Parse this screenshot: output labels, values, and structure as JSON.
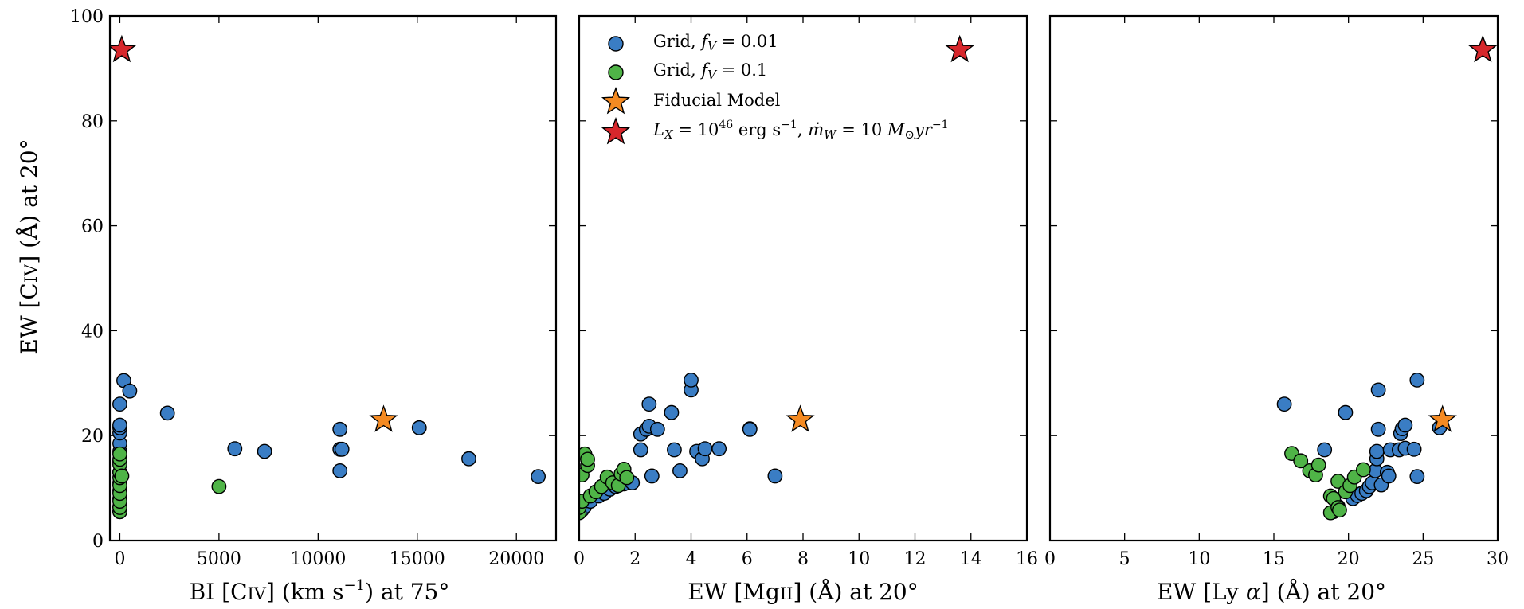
{
  "chart_data": {
    "type": "scatter",
    "shared_y_axis": {
      "label": "EW [CIV] (Å) at 20°",
      "ylim": [
        0,
        100
      ],
      "ticks": [
        0,
        20,
        40,
        60,
        80,
        100
      ]
    },
    "legend": {
      "placement": "top-left of middle panel",
      "entries": [
        {
          "key": "grid_fv_001",
          "label": "Grid, f_V = 0.01",
          "marker": "circle",
          "color": "#3a7dc4"
        },
        {
          "key": "grid_fv_01",
          "label": "Grid, f_V = 0.1",
          "marker": "circle",
          "color": "#4fb447"
        },
        {
          "key": "fiducial",
          "label": "Fiducial Model",
          "marker": "star",
          "color": "#f48a22"
        },
        {
          "key": "high_lx",
          "label": "L_X = 10^46 erg s^-1, ṁ_W = 10 M⊙yr^-1",
          "marker": "star",
          "color": "#d7272c"
        }
      ]
    },
    "panels": [
      {
        "id": "panel-bi",
        "xlabel": "BI [CIV] (km s^-1) at 75°",
        "xlim": [
          -500,
          22000
        ],
        "xticks": [
          0,
          5000,
          10000,
          15000,
          20000
        ],
        "xtick_labels": [
          "0",
          "5000",
          "10000",
          "15000",
          "20000"
        ],
        "series": [
          {
            "key": "grid_fv_001",
            "points": [
              [
                0,
                5.5
              ],
              [
                0,
                6.5
              ],
              [
                0,
                8
              ],
              [
                0,
                9.5
              ],
              [
                0,
                11
              ],
              [
                0,
                13
              ],
              [
                0,
                15
              ],
              [
                0,
                17
              ],
              [
                0,
                18.5
              ],
              [
                0,
                20.5
              ],
              [
                0,
                21.5
              ],
              [
                0,
                22
              ],
              [
                0,
                26
              ],
              [
                200,
                30.5
              ],
              [
                500,
                28.5
              ],
              [
                2400,
                24.3
              ],
              [
                5800,
                17.5
              ],
              [
                7300,
                17
              ],
              [
                11100,
                21.2
              ],
              [
                11100,
                17.4
              ],
              [
                11200,
                17.4
              ],
              [
                11100,
                13.3
              ],
              [
                15100,
                21.5
              ],
              [
                17600,
                15.6
              ],
              [
                21100,
                12.2
              ]
            ]
          },
          {
            "key": "grid_fv_01",
            "points": [
              [
                0,
                5.5
              ],
              [
                0,
                6.3
              ],
              [
                0,
                7.5
              ],
              [
                0,
                9
              ],
              [
                0,
                10.5
              ],
              [
                0,
                12
              ],
              [
                0,
                13
              ],
              [
                0,
                14.5
              ],
              [
                0,
                15.5
              ],
              [
                0,
                16.5
              ],
              [
                100,
                12.3
              ],
              [
                5000,
                10.3
              ]
            ]
          },
          {
            "key": "fiducial",
            "points": [
              [
                13300,
                23
              ]
            ]
          },
          {
            "key": "high_lx",
            "points": [
              [
                100,
                93.5
              ]
            ]
          }
        ]
      },
      {
        "id": "panel-mgii",
        "xlabel": "EW [MgII] (Å) at 20°",
        "xlim": [
          0,
          16
        ],
        "xticks": [
          0,
          2,
          4,
          6,
          8,
          10,
          12,
          14,
          16
        ],
        "xtick_labels": [
          "0",
          "2",
          "4",
          "6",
          "8",
          "10",
          "12",
          "14",
          "16"
        ],
        "series": [
          {
            "key": "grid_fv_001",
            "points": [
              [
                0.1,
                5.8
              ],
              [
                0.2,
                6.5
              ],
              [
                0.4,
                7.5
              ],
              [
                0.7,
                8.5
              ],
              [
                0.9,
                9
              ],
              [
                1.1,
                9.8
              ],
              [
                1.3,
                10.3
              ],
              [
                1.6,
                10.8
              ],
              [
                1.9,
                11
              ],
              [
                2.2,
                17.3
              ],
              [
                2.2,
                20.3
              ],
              [
                2.4,
                21.2
              ],
              [
                2.5,
                21.8
              ],
              [
                2.5,
                26
              ],
              [
                2.6,
                12.3
              ],
              [
                2.8,
                21.2
              ],
              [
                3.3,
                24.4
              ],
              [
                3.4,
                17.3
              ],
              [
                3.6,
                13.3
              ],
              [
                4.0,
                28.7
              ],
              [
                4.0,
                30.6
              ],
              [
                4.2,
                17
              ],
              [
                4.4,
                15.6
              ],
              [
                4.5,
                17.5
              ],
              [
                5.0,
                17.5
              ],
              [
                6.1,
                21.3
              ],
              [
                6.1,
                21.2
              ],
              [
                7.0,
                12.3
              ]
            ]
          },
          {
            "key": "grid_fv_01",
            "points": [
              [
                0,
                5.3
              ],
              [
                0,
                6.3
              ],
              [
                0.1,
                7.5
              ],
              [
                0.1,
                12.5
              ],
              [
                0.2,
                16.5
              ],
              [
                0.3,
                14.3
              ],
              [
                0.3,
                15.5
              ],
              [
                0.4,
                8.5
              ],
              [
                0.6,
                9.3
              ],
              [
                0.8,
                10.3
              ],
              [
                1.0,
                12.1
              ],
              [
                1.2,
                11
              ],
              [
                1.4,
                10.5
              ],
              [
                1.5,
                12.7
              ],
              [
                1.6,
                13.6
              ],
              [
                1.7,
                12
              ]
            ]
          },
          {
            "key": "fiducial",
            "points": [
              [
                7.9,
                23
              ]
            ]
          },
          {
            "key": "high_lx",
            "points": [
              [
                13.6,
                93.5
              ]
            ]
          }
        ]
      },
      {
        "id": "panel-lya",
        "xlabel": "EW [Ly α] (Å) at 20°",
        "xlim": [
          0,
          30
        ],
        "xticks": [
          0,
          5,
          10,
          15,
          20,
          25,
          30
        ],
        "xtick_labels": [
          "0",
          "5",
          "10",
          "15",
          "20",
          "25",
          "30"
        ],
        "series": [
          {
            "key": "grid_fv_001",
            "points": [
              [
                15.7,
                26
              ],
              [
                18.4,
                17.3
              ],
              [
                19.0,
                5.5
              ],
              [
                19.3,
                6.5
              ],
              [
                19.8,
                24.4
              ],
              [
                20.3,
                8
              ],
              [
                20.6,
                8.6
              ],
              [
                20.9,
                9
              ],
              [
                21.2,
                9.5
              ],
              [
                21.4,
                10.3
              ],
              [
                21.6,
                11
              ],
              [
                21.8,
                13.3
              ],
              [
                21.9,
                15.6
              ],
              [
                21.9,
                17
              ],
              [
                22.0,
                28.7
              ],
              [
                22.0,
                21.2
              ],
              [
                22.2,
                10.6
              ],
              [
                22.6,
                13
              ],
              [
                22.7,
                12.3
              ],
              [
                22.8,
                17.3
              ],
              [
                23.4,
                17.3
              ],
              [
                23.5,
                20.4
              ],
              [
                23.6,
                21.3
              ],
              [
                23.8,
                22
              ],
              [
                23.8,
                17.6
              ],
              [
                24.4,
                17.4
              ],
              [
                24.6,
                30.6
              ],
              [
                24.6,
                12.2
              ],
              [
                26.1,
                21.5
              ]
            ]
          },
          {
            "key": "grid_fv_01",
            "points": [
              [
                16.2,
                16.6
              ],
              [
                16.8,
                15.2
              ],
              [
                17.4,
                13.3
              ],
              [
                17.8,
                12.5
              ],
              [
                18.0,
                14.4
              ],
              [
                18.8,
                5.3
              ],
              [
                18.8,
                8.5
              ],
              [
                19.0,
                8
              ],
              [
                19.3,
                6.3
              ],
              [
                19.3,
                11.3
              ],
              [
                19.4,
                5.8
              ],
              [
                19.8,
                9.3
              ],
              [
                20.1,
                10.5
              ],
              [
                20.4,
                12.1
              ],
              [
                21.0,
                13.5
              ]
            ]
          },
          {
            "key": "fiducial",
            "points": [
              [
                26.3,
                23
              ]
            ]
          },
          {
            "key": "high_lx",
            "points": [
              [
                29.0,
                93.5
              ]
            ]
          }
        ]
      }
    ]
  }
}
